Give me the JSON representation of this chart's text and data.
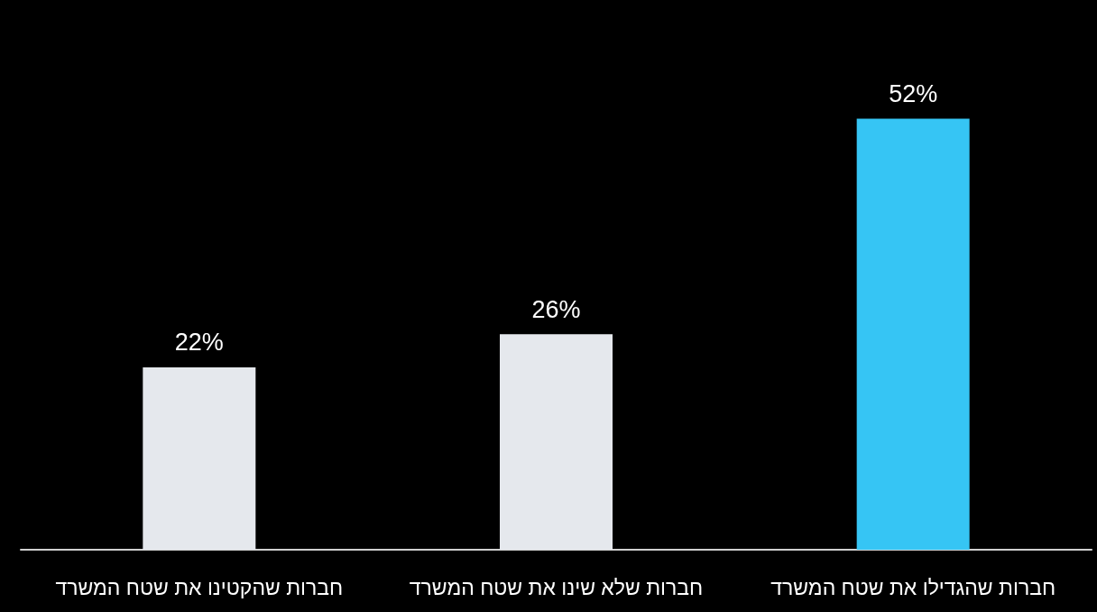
{
  "chart_data": {
    "type": "bar",
    "categories": [
      "חברות שהקטינו את שטח המשרד",
      "חברות שלא שינו את שטח המשרד",
      "חברות שהגדילו את שטח המשרד"
    ],
    "values": [
      22,
      26,
      52
    ],
    "colors": [
      "#e5e8ed",
      "#e5e8ed",
      "#36c5f4"
    ],
    "value_labels": [
      "22%",
      "26%",
      "52%"
    ],
    "tick_labels": "x",
    "grid": false
  }
}
